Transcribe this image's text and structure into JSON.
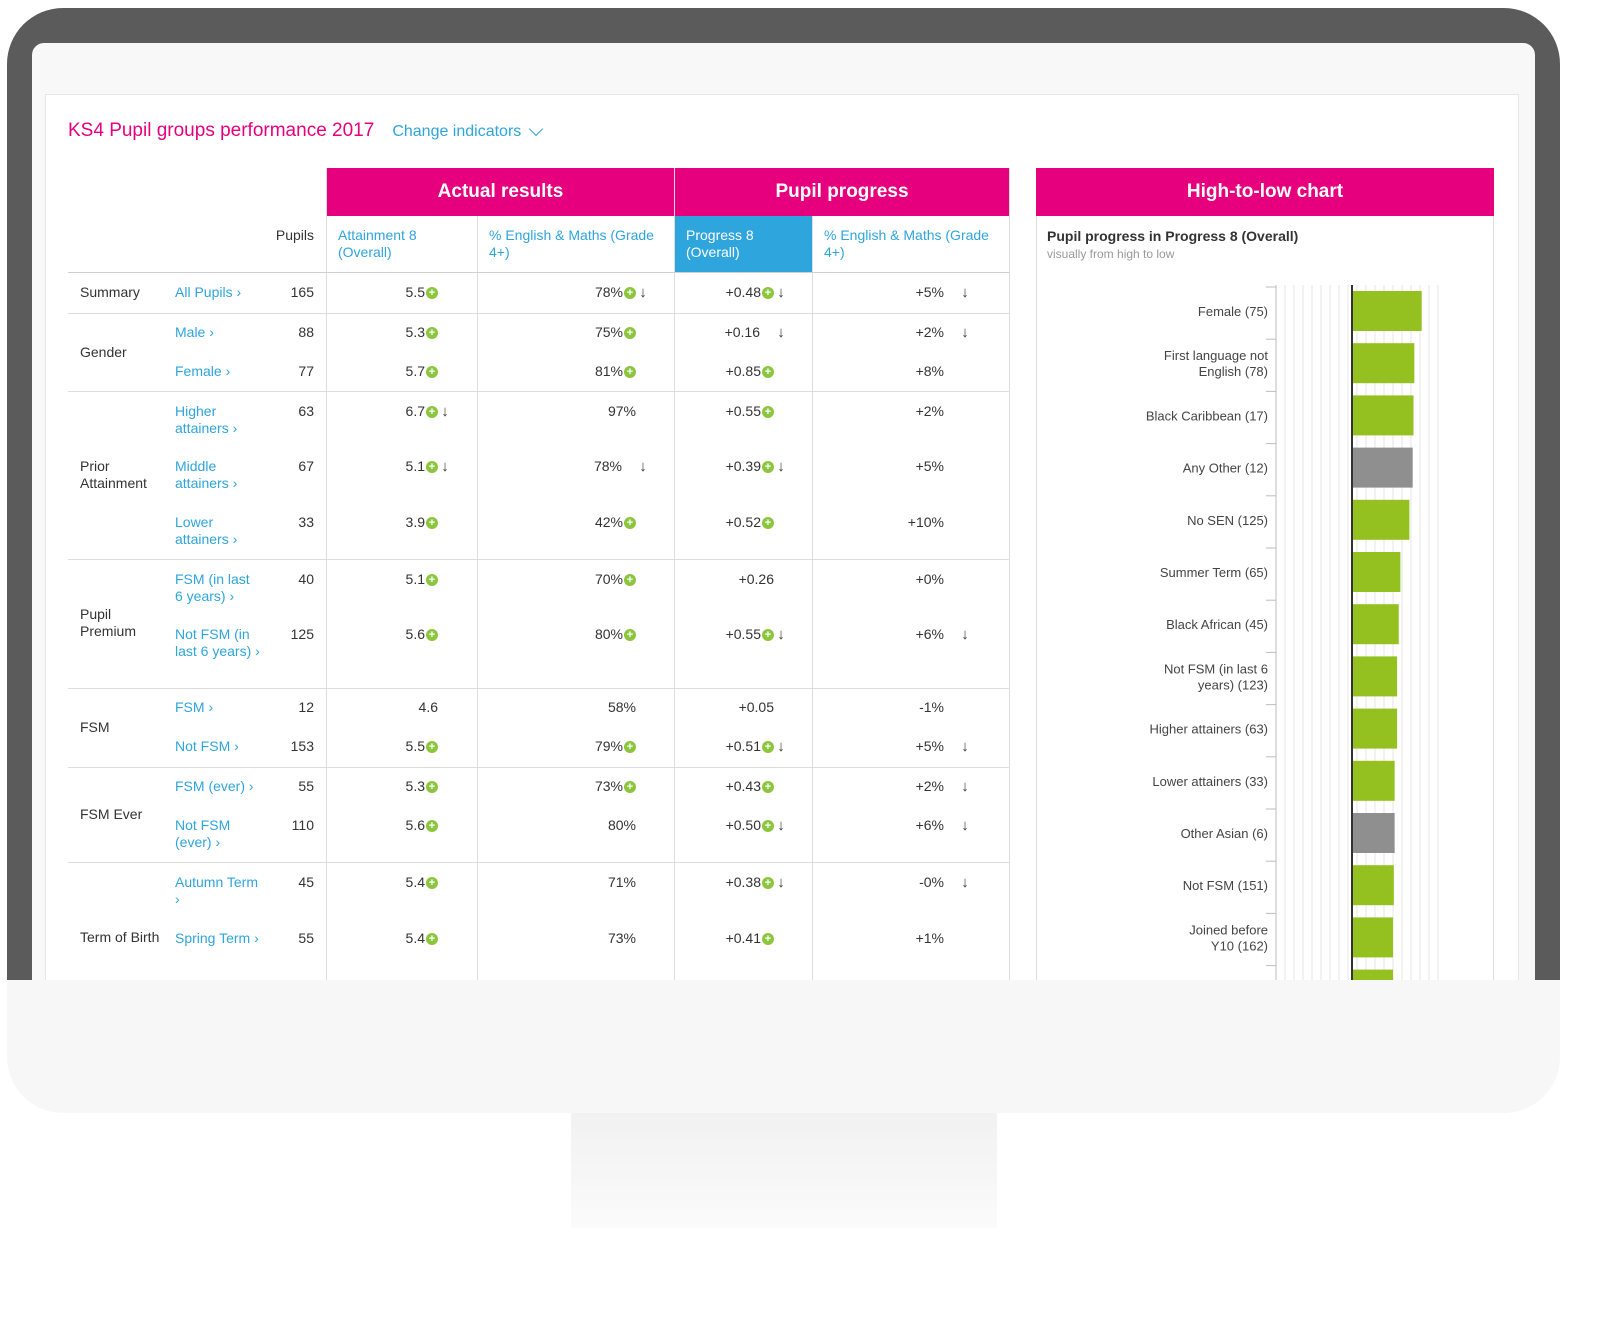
{
  "page": {
    "title": "KS4 Pupil groups performance 2017",
    "change_indicators": "Change indicators"
  },
  "table": {
    "group_headers": {
      "actual_results": "Actual results",
      "pupil_progress": "Pupil progress"
    },
    "columns": {
      "pupils": "Pupils",
      "attainment8": "Attainment 8 (Overall)",
      "em_actual": "% English & Maths (Grade 4+)",
      "progress8": "Progress 8 (Overall)",
      "em_progress": "% English & Maths (Grade 4+)"
    },
    "groups": [
      {
        "label": "Summary"
      },
      {
        "label": "Gender"
      },
      {
        "label": "Prior Attainment"
      },
      {
        "label": "Pupil Premium"
      },
      {
        "label": "FSM"
      },
      {
        "label": "FSM Ever"
      },
      {
        "label": "Term of Birth"
      }
    ],
    "rows": [
      {
        "label": "All Pupils ›",
        "pupils": "165",
        "att": "5.5",
        "att_plus": true,
        "att_down": false,
        "em": "78%",
        "em_plus": true,
        "em_down": true,
        "p8": "+0.48",
        "p8_plus": true,
        "p8_down": true,
        "pem": "+5%",
        "pem_down": true
      },
      {
        "label": "Male ›",
        "pupils": "88",
        "att": "5.3",
        "att_plus": true,
        "att_down": false,
        "em": "75%",
        "em_plus": true,
        "em_down": false,
        "p8": "+0.16",
        "p8_plus": false,
        "p8_down": true,
        "pem": "+2%",
        "pem_down": true
      },
      {
        "label": "Female ›",
        "pupils": "77",
        "att": "5.7",
        "att_plus": true,
        "att_down": false,
        "em": "81%",
        "em_plus": true,
        "em_down": false,
        "p8": "+0.85",
        "p8_plus": true,
        "p8_down": false,
        "pem": "+8%",
        "pem_down": false
      },
      {
        "label": "Higher attainers ›",
        "pupils": "63",
        "att": "6.7",
        "att_plus": true,
        "att_down": true,
        "em": "97%",
        "em_plus": false,
        "em_down": false,
        "p8": "+0.55",
        "p8_plus": true,
        "p8_down": false,
        "pem": "+2%",
        "pem_down": false
      },
      {
        "label": "Middle attainers ›",
        "pupils": "67",
        "att": "5.1",
        "att_plus": true,
        "att_down": true,
        "em": "78%",
        "em_plus": false,
        "em_down": true,
        "p8": "+0.39",
        "p8_plus": true,
        "p8_down": true,
        "pem": "+5%",
        "pem_down": false
      },
      {
        "label": "Lower attainers ›",
        "pupils": "33",
        "att": "3.9",
        "att_plus": true,
        "att_down": false,
        "em": "42%",
        "em_plus": true,
        "em_down": false,
        "p8": "+0.52",
        "p8_plus": true,
        "p8_down": false,
        "pem": "+10%",
        "pem_down": false
      },
      {
        "label": "FSM (in last 6 years) ›",
        "pupils": "40",
        "att": "5.1",
        "att_plus": true,
        "att_down": false,
        "em": "70%",
        "em_plus": true,
        "em_down": false,
        "p8": "+0.26",
        "p8_plus": false,
        "p8_down": false,
        "pem": "+0%",
        "pem_down": false
      },
      {
        "label": "Not FSM (in last 6 years) ›",
        "pupils": "125",
        "att": "5.6",
        "att_plus": true,
        "att_down": false,
        "em": "80%",
        "em_plus": true,
        "em_down": false,
        "p8": "+0.55",
        "p8_plus": true,
        "p8_down": true,
        "pem": "+6%",
        "pem_down": true
      },
      {
        "label": "FSM ›",
        "pupils": "12",
        "att": "4.6",
        "att_plus": false,
        "att_down": false,
        "em": "58%",
        "em_plus": false,
        "em_down": false,
        "p8": "+0.05",
        "p8_plus": false,
        "p8_down": false,
        "pem": "-1%",
        "pem_down": false
      },
      {
        "label": "Not FSM ›",
        "pupils": "153",
        "att": "5.5",
        "att_plus": true,
        "att_down": false,
        "em": "79%",
        "em_plus": true,
        "em_down": false,
        "p8": "+0.51",
        "p8_plus": true,
        "p8_down": true,
        "pem": "+5%",
        "pem_down": true
      },
      {
        "label": "FSM (ever) ›",
        "pupils": "55",
        "att": "5.3",
        "att_plus": true,
        "att_down": false,
        "em": "73%",
        "em_plus": true,
        "em_down": false,
        "p8": "+0.43",
        "p8_plus": true,
        "p8_down": false,
        "pem": "+2%",
        "pem_down": true
      },
      {
        "label": "Not FSM (ever) ›",
        "pupils": "110",
        "att": "5.6",
        "att_plus": true,
        "att_down": false,
        "em": "80%",
        "em_plus": false,
        "em_down": false,
        "p8": "+0.50",
        "p8_plus": true,
        "p8_down": true,
        "pem": "+6%",
        "pem_down": true
      },
      {
        "label": "Autumn Term ›",
        "pupils": "45",
        "att": "5.4",
        "att_plus": true,
        "att_down": false,
        "em": "71%",
        "em_plus": false,
        "em_down": false,
        "p8": "+0.38",
        "p8_plus": true,
        "p8_down": true,
        "pem": "-0%",
        "pem_down": true
      },
      {
        "label": "Spring Term ›",
        "pupils": "55",
        "att": "5.4",
        "att_plus": true,
        "att_down": false,
        "em": "73%",
        "em_plus": false,
        "em_down": false,
        "p8": "+0.41",
        "p8_plus": true,
        "p8_down": false,
        "pem": "+1%",
        "pem_down": false
      }
    ]
  },
  "chart_panel": {
    "header": "High-to-low chart",
    "title": "Pupil progress in Progress 8 (Overall)",
    "subtitle": "visually from high to low"
  },
  "chart_data": {
    "type": "bar",
    "orientation": "horizontal",
    "title": "Pupil progress in Progress 8 (Overall)",
    "subtitle": "visually from high to low",
    "categories": [
      "Female (75)",
      "First language not English (78)",
      "Black Caribbean (17)",
      "Any Other (12)",
      "No SEN (125)",
      "Summer Term (65)",
      "Black African (45)",
      "Not FSM (in last 6 years) (123)",
      "Higher attainers (63)",
      "Lower attainers (33)",
      "Other Asian (6)",
      "Not FSM (151)",
      "Joined before Y10 (162)"
    ],
    "values": [
      0.85,
      0.76,
      0.75,
      0.74,
      0.7,
      0.59,
      0.57,
      0.55,
      0.55,
      0.52,
      0.52,
      0.51,
      0.5
    ],
    "bar_colors": [
      "#94c11f",
      "#94c11f",
      "#94c11f",
      "#8f8f8f",
      "#94c11f",
      "#94c11f",
      "#94c11f",
      "#94c11f",
      "#94c11f",
      "#94c11f",
      "#8f8f8f",
      "#94c11f",
      "#94c11f"
    ],
    "xlim": [
      -1,
      1
    ],
    "grid": true,
    "colors": {
      "positive": "#94c11f",
      "neutral": "#8f8f8f"
    }
  },
  "colors": {
    "brand": "#e6007e",
    "link": "#2ea5dc",
    "positive": "#8cc63f"
  }
}
